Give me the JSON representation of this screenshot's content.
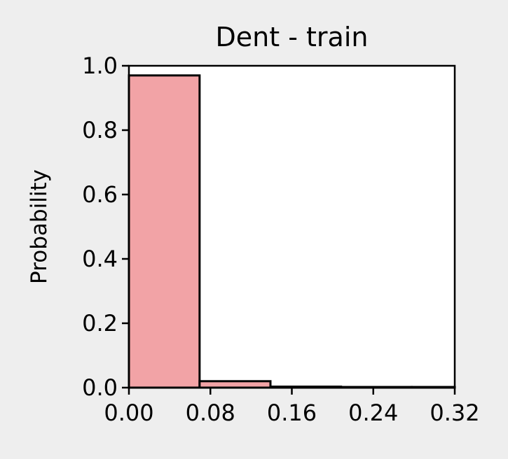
{
  "chart_data": {
    "type": "bar",
    "title": "Dent - train",
    "xlabel": "",
    "ylabel": "Probability",
    "xlim": [
      0,
      0.32
    ],
    "ylim": [
      0,
      1.0
    ],
    "bin_edges": [
      0,
      0.0694,
      0.139,
      0.2083,
      0.2777,
      0.32
    ],
    "values": [
      0.97,
      0.02,
      0.003,
      0.002,
      0.002
    ],
    "xticks": [
      "0.00",
      "0.08",
      "0.16",
      "0.24",
      "0.32"
    ],
    "yticks": [
      "0.0",
      "0.2",
      "0.4",
      "0.6",
      "0.8",
      "1.0"
    ],
    "grid": false,
    "legend": "none"
  },
  "colors": {
    "bar_fill": "#f2a3a6",
    "bar_edge": "#000000",
    "plot_background": "#ffffff",
    "figure_background": "#eeeeee"
  }
}
